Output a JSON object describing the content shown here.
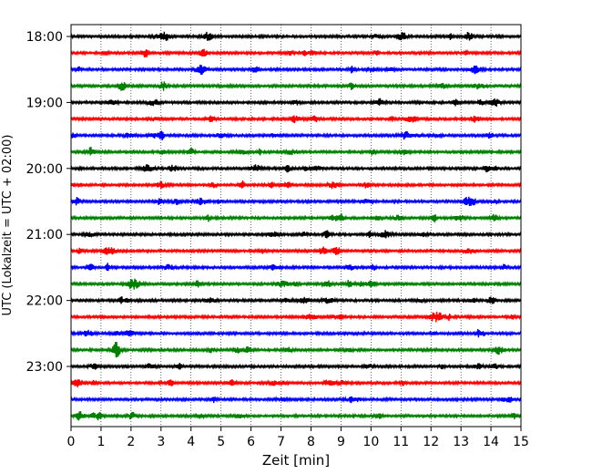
{
  "chart_data": {
    "type": "line",
    "title": "",
    "xlabel": "Zeit  [min]",
    "ylabel": "UTC (Lokalzeit = UTC + 02:00)",
    "xlim": [
      0,
      15
    ],
    "x_ticks": [
      0,
      1,
      2,
      3,
      4,
      5,
      6,
      7,
      8,
      9,
      10,
      11,
      12,
      13,
      14,
      15
    ],
    "x_tick_labels": [
      "0",
      "1",
      "2",
      "3",
      "4",
      "5",
      "6",
      "7",
      "8",
      "9",
      "10",
      "11",
      "12",
      "13",
      "14",
      "15"
    ],
    "y_tick_labels": [
      "18:00",
      "19:00",
      "20:00",
      "21:00",
      "22:00",
      "23:00"
    ],
    "trace_minutes": 15,
    "traces_per_label": 4,
    "vertical_grid": true,
    "grid_style": "dotted",
    "trace_colors": [
      "#000000",
      "#ff0000",
      "#0000ff",
      "#008000"
    ],
    "series": [
      {
        "start": "18:00",
        "color": "#000000"
      },
      {
        "start": "18:15",
        "color": "#ff0000"
      },
      {
        "start": "18:30",
        "color": "#0000ff"
      },
      {
        "start": "18:45",
        "color": "#008000"
      },
      {
        "start": "19:00",
        "color": "#000000"
      },
      {
        "start": "19:15",
        "color": "#ff0000"
      },
      {
        "start": "19:30",
        "color": "#0000ff"
      },
      {
        "start": "19:45",
        "color": "#008000"
      },
      {
        "start": "20:00",
        "color": "#000000"
      },
      {
        "start": "20:15",
        "color": "#ff0000"
      },
      {
        "start": "20:30",
        "color": "#0000ff"
      },
      {
        "start": "20:45",
        "color": "#008000"
      },
      {
        "start": "21:00",
        "color": "#000000"
      },
      {
        "start": "21:15",
        "color": "#ff0000"
      },
      {
        "start": "21:30",
        "color": "#0000ff"
      },
      {
        "start": "21:45",
        "color": "#008000"
      },
      {
        "start": "22:00",
        "color": "#000000"
      },
      {
        "start": "22:15",
        "color": "#ff0000"
      },
      {
        "start": "22:30",
        "color": "#0000ff"
      },
      {
        "start": "22:45",
        "color": "#008000"
      },
      {
        "start": "23:00",
        "color": "#000000"
      },
      {
        "start": "23:15",
        "color": "#ff0000"
      },
      {
        "start": "23:30",
        "color": "#0000ff"
      },
      {
        "start": "23:45",
        "color": "#008000"
      }
    ]
  }
}
